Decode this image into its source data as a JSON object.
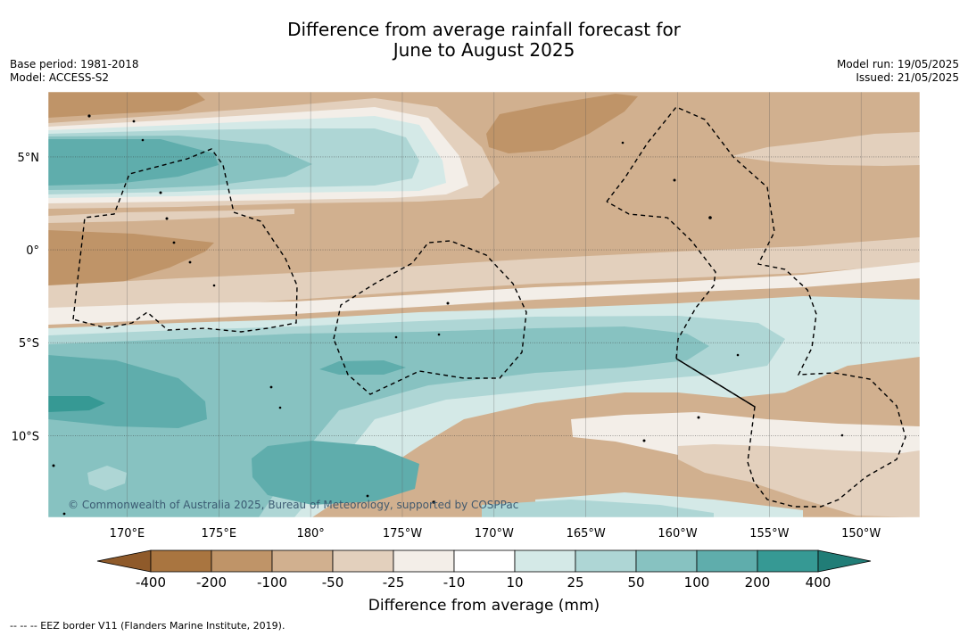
{
  "title_line1": "Difference from average rainfall forecast for",
  "title_line2": "June to August 2025",
  "base_period": "Base period: 1981-2018",
  "model": "Model: ACCESS-S2",
  "model_run": "Model run: 19/05/2025",
  "issued": "Issued: 21/05/2025",
  "copyright": "© Commonwealth of Australia 2025, Bureau of Meteorology, supported by COSPPac",
  "colorbar_title": "Difference from average (mm)",
  "eez_legend": "--  --  -- EEZ border V11 (Flanders Marine Institute, 2019).",
  "map": {
    "lon_min": 165.7,
    "lon_max": 213.2,
    "lat_min": -14.4,
    "lat_max": 8.5,
    "lon_ticks": [
      {
        "lon": 170,
        "label": "170°E"
      },
      {
        "lon": 175,
        "label": "175°E"
      },
      {
        "lon": 180,
        "label": "180°"
      },
      {
        "lon": 185,
        "label": "175°W"
      },
      {
        "lon": 190,
        "label": "170°W"
      },
      {
        "lon": 195,
        "label": "165°W"
      },
      {
        "lon": 200,
        "label": "160°W"
      },
      {
        "lon": 205,
        "label": "155°W"
      },
      {
        "lon": 210,
        "label": "150°W"
      }
    ],
    "lat_ticks": [
      {
        "lat": 5,
        "label": "5°N"
      },
      {
        "lat": 0,
        "label": "0°"
      },
      {
        "lat": -5,
        "label": "5°S"
      },
      {
        "lat": -10,
        "label": "10°S"
      }
    ]
  },
  "colorbar": {
    "bins": [
      {
        "label": "-400",
        "color": "#a97540"
      },
      {
        "label": "-200",
        "color": "#bf9468"
      },
      {
        "label": "-100",
        "color": "#d1b08f"
      },
      {
        "label": "-50",
        "color": "#e3d0bd"
      },
      {
        "label": "-25",
        "color": "#f3eee8"
      },
      {
        "label": "-10",
        "color": "#ffffff"
      },
      {
        "label": "10",
        "color": "#d4e9e7"
      },
      {
        "label": "25",
        "color": "#aed6d5"
      },
      {
        "label": "50",
        "color": "#87c2c1"
      },
      {
        "label": "100",
        "color": "#5fadac"
      },
      {
        "label": "200",
        "color": "#369994"
      },
      {
        "label": "400",
        "color": ""
      }
    ],
    "under_color": "#8f5a2a",
    "over_color": "#217d77"
  },
  "colors": {
    "dry_mid": "#d1b08f",
    "dry_strong": "#bf9468",
    "dry_light": "#e3d0bd",
    "dry_faint": "#f3eee8",
    "wet_faint": "#d4e9e7",
    "wet_light": "#aed6d5",
    "wet_mid": "#87c2c1",
    "wet_strong": "#5fadac",
    "wet_max": "#369994"
  }
}
